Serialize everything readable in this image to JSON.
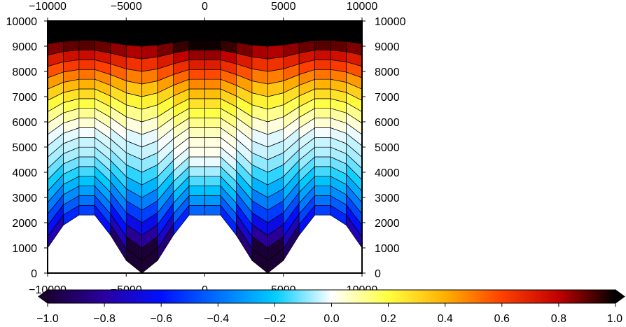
{
  "chart_data": {
    "type": "heatmap",
    "title": "",
    "xlabel": "",
    "ylabel": "",
    "xlim": [
      -10000,
      10000
    ],
    "ylim": [
      0,
      10000
    ],
    "x_ticks": [
      -10000,
      -5000,
      0,
      5000,
      10000
    ],
    "y_ticks": [
      0,
      1000,
      2000,
      3000,
      4000,
      5000,
      6000,
      7000,
      8000,
      9000,
      10000
    ],
    "x_tick_labels": [
      "−10000",
      "−5000",
      "0",
      "5000",
      "10000"
    ],
    "y_tick_labels": [
      "0",
      "1000",
      "2000",
      "3000",
      "4000",
      "5000",
      "6000",
      "7000",
      "8000",
      "9000",
      "10000"
    ],
    "grid_description": "deformed mesh: columns every 1000 in x, 20 layers; bottom surface dips to 0 at x=-4000 and x=4000 and rises to 2300 at x=0 and near the edges",
    "column_x": [
      -10000,
      -9000,
      -8000,
      -7000,
      -6000,
      -5000,
      -4000,
      -3000,
      -2000,
      -1000,
      0,
      1000,
      2000,
      3000,
      4000,
      5000,
      6000,
      7000,
      8000,
      9000,
      10000
    ],
    "bottom_surface_y": [
      1000,
      1900,
      2300,
      2300,
      1500,
      500,
      0,
      500,
      1500,
      2300,
      2300,
      2300,
      1500,
      500,
      0,
      500,
      1500,
      2300,
      2300,
      1900,
      1000
    ],
    "top_y": 10000,
    "layers": 20,
    "colorbar": {
      "min": -1.0,
      "max": 1.0,
      "tick_values": [
        -1.0,
        -0.8,
        -0.6,
        -0.4,
        -0.2,
        0.0,
        0.2,
        0.4,
        0.6,
        0.8,
        1.0
      ],
      "tick_labels": [
        "−1.0",
        "−0.8",
        "−0.6",
        "−0.4",
        "−0.2",
        "0.0",
        "0.2",
        "0.4",
        "0.6",
        "0.8",
        "1.0"
      ],
      "colormap": [
        "#1a0033",
        "#2a00a0",
        "#0010ff",
        "#0070ff",
        "#00ccff",
        "#ffffff",
        "#ffff40",
        "#ffb000",
        "#ff4000",
        "#c00000",
        "#000000"
      ],
      "extend": "both"
    }
  }
}
